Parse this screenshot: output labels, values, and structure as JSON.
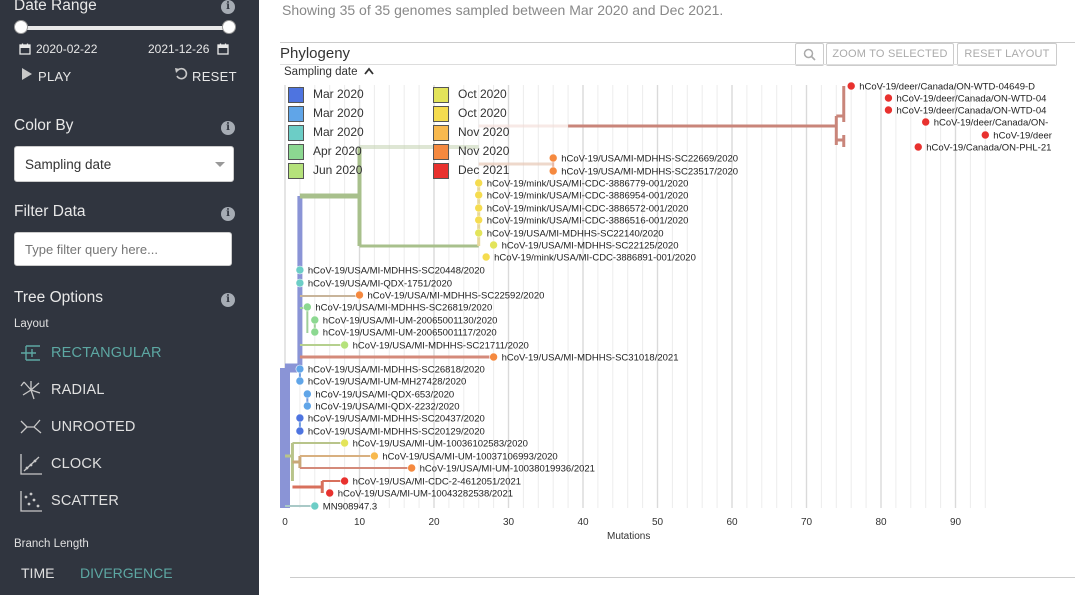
{
  "sidebar": {
    "date_range": {
      "title": "Date Range",
      "start": "2020-02-22",
      "end": "2021-12-26",
      "play_label": "PLAY",
      "reset_label": "RESET"
    },
    "color_by": {
      "title": "Color By",
      "selected": "Sampling date"
    },
    "filter": {
      "title": "Filter Data",
      "placeholder": "Type filter query here..."
    },
    "tree_options": {
      "title": "Tree Options",
      "layout_label": "Layout",
      "layouts": [
        "RECTANGULAR",
        "RADIAL",
        "UNROOTED",
        "CLOCK",
        "SCATTER"
      ],
      "selected_layout": "RECTANGULAR",
      "branch_length_label": "Branch Length",
      "branch_options": [
        "TIME",
        "DIVERGENCE"
      ],
      "selected_branch": "DIVERGENCE"
    }
  },
  "main": {
    "summary": "Showing 35 of 35 genomes sampled between Mar 2020 and Dec 2021.",
    "panel_title": "Phylogeny",
    "zoom_label": "ZOOM TO SELECTED",
    "reset_layout_label": "RESET LAYOUT",
    "legend_title": "Sampling date",
    "legend": [
      {
        "label": "Mar 2020",
        "color": "#4e74e0"
      },
      {
        "label": "Mar 2020",
        "color": "#60a5e8"
      },
      {
        "label": "Mar 2020",
        "color": "#6ccdc6"
      },
      {
        "label": "Apr 2020",
        "color": "#8cd891"
      },
      {
        "label": "Jun 2020",
        "color": "#b5e27b"
      },
      {
        "label": "Oct 2020",
        "color": "#e3e45a"
      },
      {
        "label": "Oct 2020",
        "color": "#f5dc4f"
      },
      {
        "label": "Nov 2020",
        "color": "#f8b94e"
      },
      {
        "label": "Nov 2020",
        "color": "#f5893f"
      },
      {
        "label": "Dec 2021",
        "color": "#e8312e"
      }
    ],
    "x_axis_label": "Mutations",
    "x_ticks": [
      0,
      10,
      20,
      30,
      40,
      50,
      60,
      70,
      80,
      90
    ],
    "tips": [
      {
        "name": "hCoV-19/deer/Canada/ON-WTD-04649-D",
        "color": "#e8312e"
      },
      {
        "name": "hCoV-19/deer/Canada/ON-WTD-04",
        "color": "#e8312e"
      },
      {
        "name": "hCoV-19/deer/Canada/ON-WTD-04",
        "color": "#e8312e"
      },
      {
        "name": "hCoV-19/deer/Canada/ON-",
        "color": "#e8312e"
      },
      {
        "name": "hCoV-19/deer",
        "color": "#e8312e"
      },
      {
        "name": "hCoV-19/Canada/ON-PHL-21",
        "color": "#e8312e"
      },
      {
        "name": "hCoV-19/USA/MI-MDHHS-SC22669/2020",
        "color": "#f5893f"
      },
      {
        "name": "hCoV-19/USA/MI-MDHHS-SC23517/2020",
        "color": "#f5893f"
      },
      {
        "name": "hCoV-19/mink/USA/MI-CDC-3886779-001/2020",
        "color": "#f5dc4f"
      },
      {
        "name": "hCoV-19/mink/USA/MI-CDC-3886954-001/2020",
        "color": "#f5dc4f"
      },
      {
        "name": "hCoV-19/mink/USA/MI-CDC-3886572-001/2020",
        "color": "#f5dc4f"
      },
      {
        "name": "hCoV-19/mink/USA/MI-CDC-3886516-001/2020",
        "color": "#f5dc4f"
      },
      {
        "name": "hCoV-19/USA/MI-MDHHS-SC22140/2020",
        "color": "#e3e45a"
      },
      {
        "name": "hCoV-19/USA/MI-MDHHS-SC22125/2020",
        "color": "#e3e45a"
      },
      {
        "name": "hCoV-19/mink/USA/MI-CDC-3886891-001/2020",
        "color": "#f5dc4f"
      },
      {
        "name": "hCoV-19/USA/MI-MDHHS-SC20448/2020",
        "color": "#6ccdc6"
      },
      {
        "name": "hCoV-19/USA/MI-QDX-1751/2020",
        "color": "#6ccdc6"
      },
      {
        "name": "hCoV-19/USA/MI-MDHHS-SC22592/2020",
        "color": "#f5893f"
      },
      {
        "name": "hCoV-19/USA/MI-MDHHS-SC26819/2020",
        "color": "#8cd891"
      },
      {
        "name": "hCoV-19/USA/MI-UM-20065001130/2020",
        "color": "#8cd891"
      },
      {
        "name": "hCoV-19/USA/MI-UM-20065001117/2020",
        "color": "#8cd891"
      },
      {
        "name": "hCoV-19/USA/MI-MDHHS-SC21711/2020",
        "color": "#b5e27b"
      },
      {
        "name": "hCoV-19/USA/MI-MDHHS-SC31018/2021",
        "color": "#f5893f"
      },
      {
        "name": "hCoV-19/USA/MI-MDHHS-SC26818/2020",
        "color": "#60a5e8"
      },
      {
        "name": "hCoV-19/USA/MI-UM-MH27428/2020",
        "color": "#60a5e8"
      },
      {
        "name": "hCoV-19/USA/MI-QDX-653/2020",
        "color": "#60a5e8"
      },
      {
        "name": "hCoV-19/USA/MI-QDX-2232/2020",
        "color": "#60a5e8"
      },
      {
        "name": "hCoV-19/USA/MI-MDHHS-SC20437/2020",
        "color": "#4e74e0"
      },
      {
        "name": "hCoV-19/USA/MI-MDHHS-SC20129/2020",
        "color": "#4e74e0"
      },
      {
        "name": "hCoV-19/USA/MI-UM-10036102583/2020",
        "color": "#e3e45a"
      },
      {
        "name": "hCoV-19/USA/MI-UM-10037106993/2020",
        "color": "#f8b94e"
      },
      {
        "name": "hCoV-19/USA/MI-UM-10038019936/2021",
        "color": "#f5893f"
      },
      {
        "name": "hCoV-19/USA/MI-CDC-2-4612051/2021",
        "color": "#e8312e"
      },
      {
        "name": "hCoV-19/USA/MI-UM-10043282538/2021",
        "color": "#e8312e"
      },
      {
        "name": "MN908947.3",
        "color": "#6ccdc6"
      }
    ]
  },
  "chart_data": {
    "type": "scatter",
    "xlabel": "Mutations",
    "xlim": [
      0,
      95
    ],
    "tips": [
      {
        "name": "hCoV-19/deer/Canada/ON-WTD-04649-D",
        "x": 76
      },
      {
        "name": "hCoV-19/deer/Canada/ON-WTD-04",
        "x": 81
      },
      {
        "name": "hCoV-19/deer/Canada/ON-WTD-04",
        "x": 81
      },
      {
        "name": "hCoV-19/deer/Canada/ON-",
        "x": 86
      },
      {
        "name": "hCoV-19/deer",
        "x": 94
      },
      {
        "name": "hCoV-19/Canada/ON-PHL-21",
        "x": 85
      },
      {
        "name": "hCoV-19/USA/MI-MDHHS-SC22669/2020",
        "x": 36
      },
      {
        "name": "hCoV-19/USA/MI-MDHHS-SC23517/2020",
        "x": 36
      },
      {
        "name": "hCoV-19/mink/USA/MI-CDC-3886779-001/2020",
        "x": 26
      },
      {
        "name": "hCoV-19/mink/USA/MI-CDC-3886954-001/2020",
        "x": 26
      },
      {
        "name": "hCoV-19/mink/USA/MI-CDC-3886572-001/2020",
        "x": 26
      },
      {
        "name": "hCoV-19/mink/USA/MI-CDC-3886516-001/2020",
        "x": 26
      },
      {
        "name": "hCoV-19/USA/MI-MDHHS-SC22140/2020",
        "x": 26
      },
      {
        "name": "hCoV-19/USA/MI-MDHHS-SC22125/2020",
        "x": 28
      },
      {
        "name": "hCoV-19/mink/USA/MI-CDC-3886891-001/2020",
        "x": 27
      },
      {
        "name": "hCoV-19/USA/MI-MDHHS-SC20448/2020",
        "x": 2
      },
      {
        "name": "hCoV-19/USA/MI-QDX-1751/2020",
        "x": 2
      },
      {
        "name": "hCoV-19/USA/MI-MDHHS-SC22592/2020",
        "x": 10
      },
      {
        "name": "hCoV-19/USA/MI-MDHHS-SC26819/2020",
        "x": 3
      },
      {
        "name": "hCoV-19/USA/MI-UM-20065001130/2020",
        "x": 4
      },
      {
        "name": "hCoV-19/USA/MI-UM-20065001117/2020",
        "x": 4
      },
      {
        "name": "hCoV-19/USA/MI-MDHHS-SC21711/2020",
        "x": 8
      },
      {
        "name": "hCoV-19/USA/MI-MDHHS-SC31018/2021",
        "x": 28
      },
      {
        "name": "hCoV-19/USA/MI-MDHHS-SC26818/2020",
        "x": 2
      },
      {
        "name": "hCoV-19/USA/MI-UM-MH27428/2020",
        "x": 2
      },
      {
        "name": "hCoV-19/USA/MI-QDX-653/2020",
        "x": 3
      },
      {
        "name": "hCoV-19/USA/MI-QDX-2232/2020",
        "x": 3
      },
      {
        "name": "hCoV-19/USA/MI-MDHHS-SC20437/2020",
        "x": 2
      },
      {
        "name": "hCoV-19/USA/MI-MDHHS-SC20129/2020",
        "x": 2
      },
      {
        "name": "hCoV-19/USA/MI-UM-10036102583/2020",
        "x": 8
      },
      {
        "name": "hCoV-19/USA/MI-UM-10037106993/2020",
        "x": 12
      },
      {
        "name": "hCoV-19/USA/MI-UM-10038019936/2021",
        "x": 17
      },
      {
        "name": "hCoV-19/USA/MI-CDC-2-4612051/2021",
        "x": 8
      },
      {
        "name": "hCoV-19/USA/MI-UM-10043282538/2021",
        "x": 6
      },
      {
        "name": "MN908947.3",
        "x": 4
      }
    ]
  }
}
